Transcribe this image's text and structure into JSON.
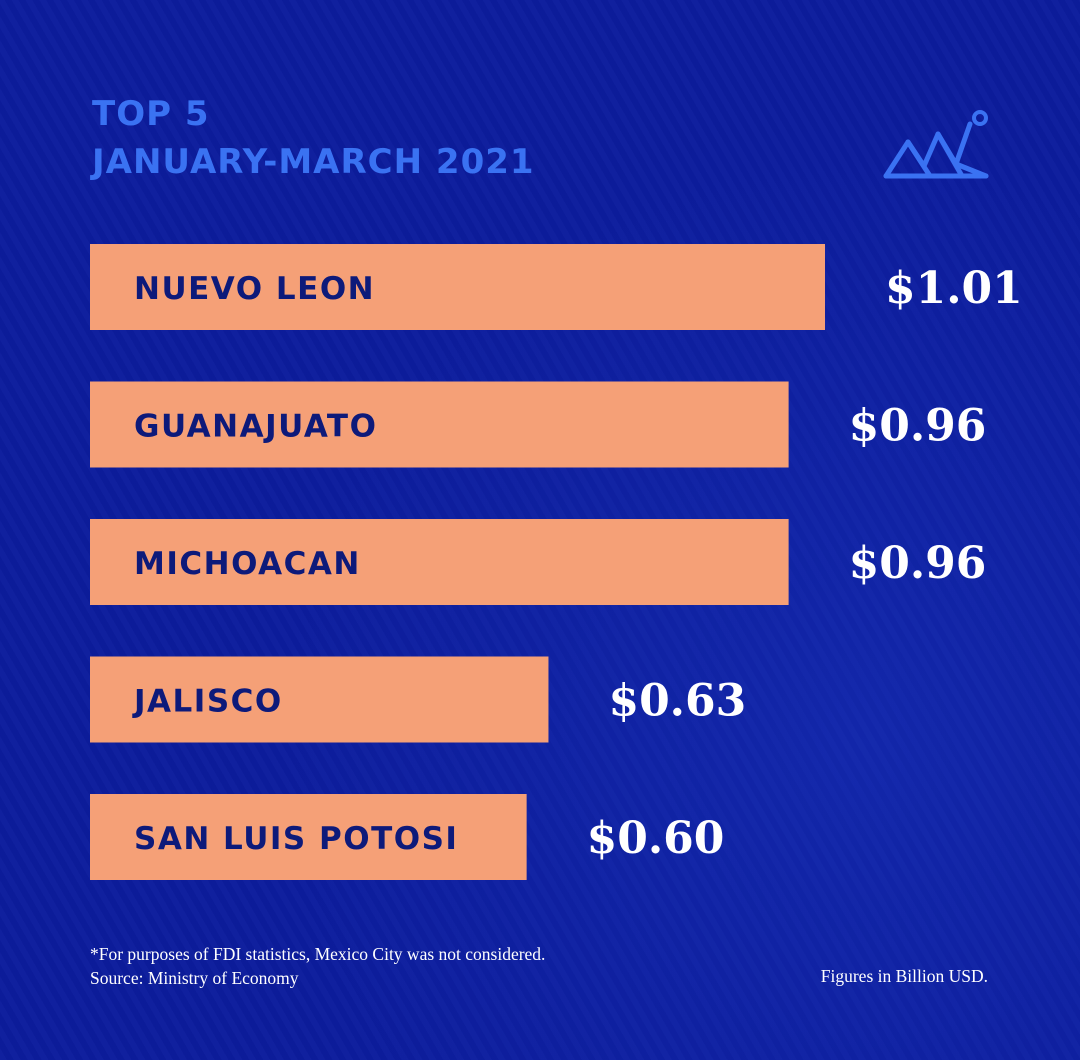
{
  "header": {
    "line1": "TOP 5",
    "line2": "JANUARY-MARCH 2021",
    "logo_icon": "mountain-chart-icon"
  },
  "colors": {
    "background": "#0c1c9c",
    "title": "#3a72f2",
    "bar": "#f5a077",
    "bar_label": "#0d1a7a",
    "value_label": "#ffffff"
  },
  "chart_data": {
    "type": "bar",
    "orientation": "horizontal",
    "categories": [
      "NUEVO LEON",
      "GUANAJUATO",
      "MICHOACAN",
      "JALISCO",
      "SAN LUIS POTOSI"
    ],
    "values": [
      1.01,
      0.96,
      0.96,
      0.63,
      0.6
    ],
    "value_labels": [
      "$1.01",
      "$0.96",
      "$0.96",
      "$0.63",
      "$0.60"
    ],
    "title": "TOP 5 JANUARY-MARCH 2021",
    "xlabel": "",
    "ylabel": "",
    "grid": false
  },
  "footer": {
    "note": "*For purposes of FDI statistics, Mexico City was not considered.",
    "source": "Source: Ministry of Economy",
    "units": "Figures in Billion USD."
  }
}
